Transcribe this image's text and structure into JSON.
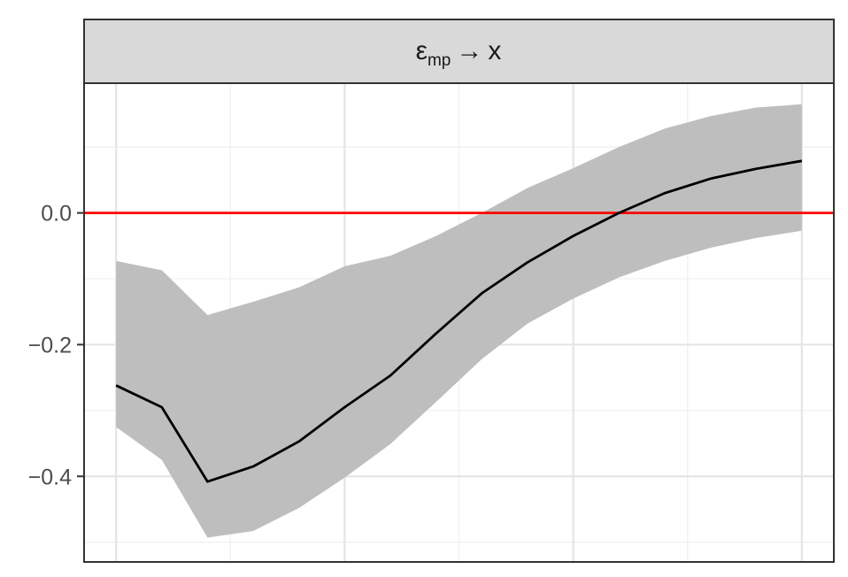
{
  "chart_data": {
    "type": "line",
    "facet": {
      "label_symbol": "ε",
      "label_subscript": "mp",
      "label_arrow": "→",
      "label_target": "x"
    },
    "x": [
      0,
      1,
      2,
      3,
      4,
      5,
      6,
      7,
      8,
      9,
      10,
      11,
      12,
      13,
      14,
      15
    ],
    "xlim": [
      -0.7,
      15.7
    ],
    "x_gridlines_major": [
      0,
      5,
      10,
      15
    ],
    "x_gridlines_minor": [
      2.5,
      7.5,
      12.5
    ],
    "ylim": [
      -0.53,
      0.197
    ],
    "y_ticks": [
      0.0,
      -0.2,
      -0.4
    ],
    "y_tick_labels": [
      "0.0",
      "−0.2",
      "−0.4"
    ],
    "y_gridlines_minor": [
      0.1,
      -0.1,
      -0.3,
      -0.5
    ],
    "series": [
      {
        "type": "line",
        "color": "#000000",
        "values": [
          -0.262,
          -0.295,
          -0.408,
          -0.385,
          -0.347,
          -0.295,
          -0.247,
          -0.183,
          -0.122,
          -0.075,
          -0.035,
          0.0,
          0.03,
          0.052,
          0.067,
          0.079
        ]
      }
    ],
    "band": {
      "color": "#bebebe",
      "upper": [
        -0.073,
        -0.087,
        -0.155,
        -0.135,
        -0.113,
        -0.081,
        -0.065,
        -0.035,
        0.0,
        0.038,
        0.068,
        0.1,
        0.128,
        0.147,
        0.16,
        0.165
      ],
      "lower": [
        -0.325,
        -0.375,
        -0.493,
        -0.483,
        -0.448,
        -0.402,
        -0.351,
        -0.287,
        -0.222,
        -0.168,
        -0.13,
        -0.098,
        -0.073,
        -0.053,
        -0.038,
        -0.027
      ]
    },
    "reference_line": {
      "y": 0,
      "color": "#ff0000"
    },
    "grid": true,
    "legend": "none"
  }
}
